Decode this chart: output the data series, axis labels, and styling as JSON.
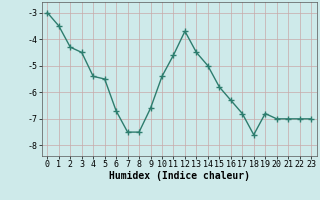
{
  "x": [
    0,
    1,
    2,
    3,
    4,
    5,
    6,
    7,
    8,
    9,
    10,
    11,
    12,
    13,
    14,
    15,
    16,
    17,
    18,
    19,
    20,
    21,
    22,
    23
  ],
  "y": [
    -3.0,
    -3.5,
    -4.3,
    -4.5,
    -5.4,
    -5.5,
    -6.7,
    -7.5,
    -7.5,
    -6.6,
    -5.4,
    -4.6,
    -3.7,
    -4.5,
    -5.0,
    -5.8,
    -6.3,
    -6.8,
    -7.6,
    -6.8,
    -7.0,
    -7.0,
    -7.0,
    -7.0
  ],
  "line_color": "#2d7d6e",
  "marker": "+",
  "markersize": 4,
  "linewidth": 1.0,
  "bg_color": "#ceeaea",
  "grid_color_v": "#c8a8a8",
  "grid_color_h": "#c8a8a8",
  "xlabel": "Humidex (Indice chaleur)",
  "xlabel_fontsize": 7,
  "tick_fontsize": 6,
  "ylim": [
    -8.4,
    -2.6
  ],
  "xlim": [
    -0.5,
    23.5
  ],
  "yticks": [
    -8,
    -7,
    -6,
    -5,
    -4,
    -3
  ],
  "xticks": [
    0,
    1,
    2,
    3,
    4,
    5,
    6,
    7,
    8,
    9,
    10,
    11,
    12,
    13,
    14,
    15,
    16,
    17,
    18,
    19,
    20,
    21,
    22,
    23
  ]
}
